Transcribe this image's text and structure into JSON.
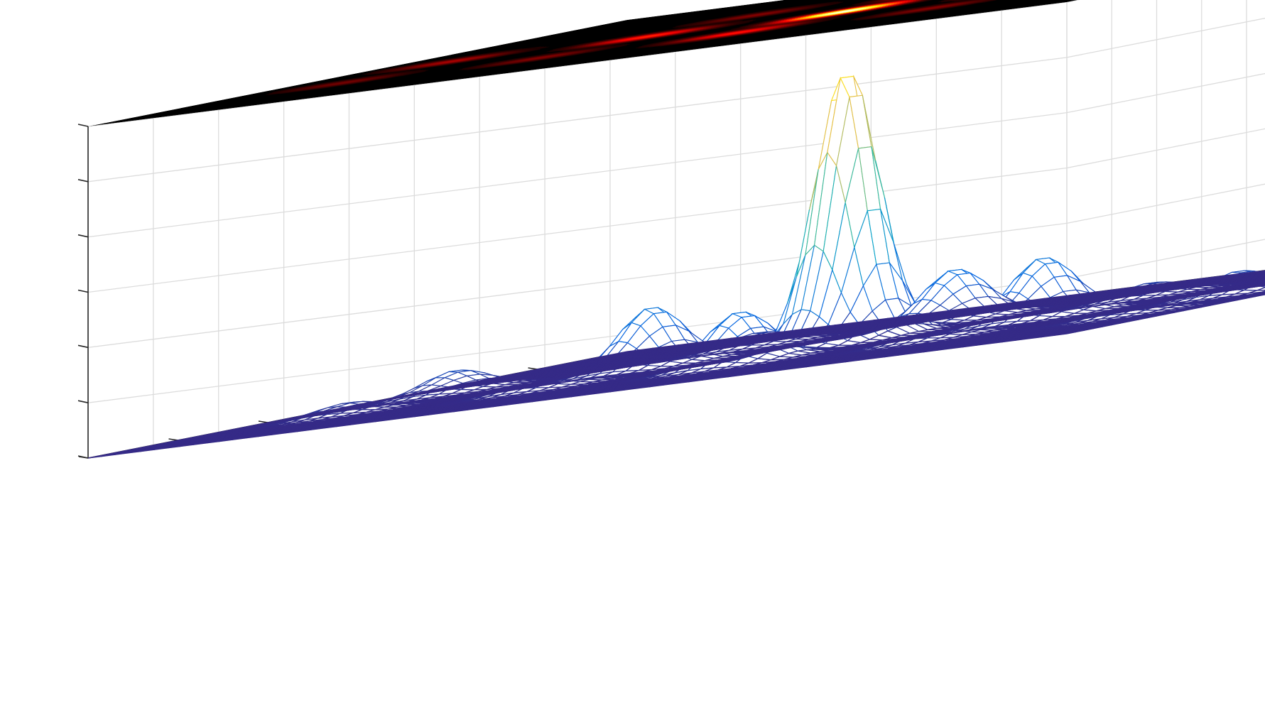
{
  "chart_data": {
    "type": "surface",
    "title": "",
    "xlabel": "",
    "ylabel": "",
    "zlabel": "",
    "grid": true,
    "xlim": [
      0,
      150
    ],
    "ylim": [
      0,
      120
    ],
    "zlim": [
      0,
      1.2
    ],
    "x_ticks": [
      "0",
      "50",
      "100",
      "150"
    ],
    "y_ticks": [
      "0",
      "20",
      "40",
      "60",
      "80",
      "100",
      "120"
    ],
    "z_ticks": [
      "0",
      "0.2",
      "0.4",
      "0.6",
      "0.8",
      "1",
      "1.2"
    ],
    "mesh_colormap": "parula",
    "image_colormap": "hot",
    "image_plane_z": 1.2,
    "peaks": [
      {
        "x": 75,
        "y": 60,
        "z": 1.0
      },
      {
        "x": 75,
        "y": 84,
        "z": 0.19
      },
      {
        "x": 75,
        "y": 36,
        "z": 0.19
      },
      {
        "x": 105,
        "y": 60,
        "z": 0.22
      },
      {
        "x": 45,
        "y": 60,
        "z": 0.22
      },
      {
        "x": 105,
        "y": 84,
        "z": 0.05
      },
      {
        "x": 45,
        "y": 84,
        "z": 0.05
      },
      {
        "x": 105,
        "y": 36,
        "z": 0.05
      },
      {
        "x": 45,
        "y": 36,
        "z": 0.05
      },
      {
        "x": 135,
        "y": 60,
        "z": 0.08
      },
      {
        "x": 15,
        "y": 60,
        "z": 0.08
      },
      {
        "x": 135,
        "y": 84,
        "z": 0.04
      },
      {
        "x": 15,
        "y": 84,
        "z": 0.04
      }
    ]
  }
}
